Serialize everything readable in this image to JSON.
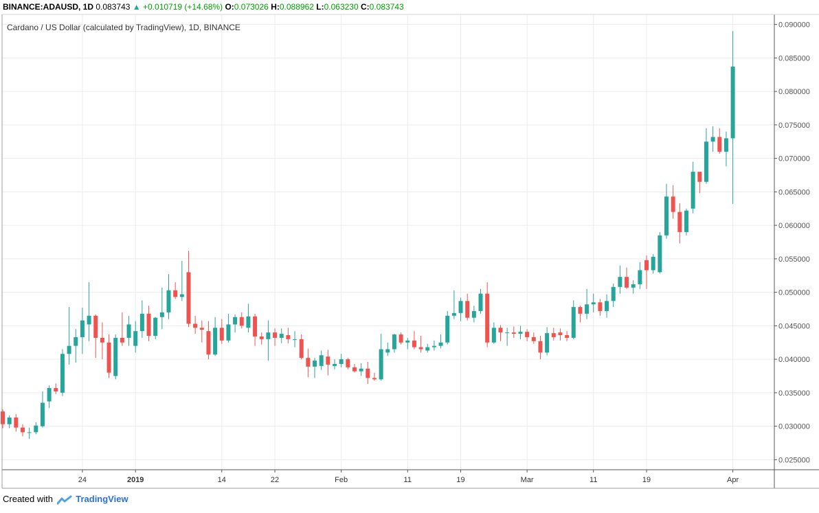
{
  "header": {
    "symbol": "BINANCE:ADAUSD, 1D",
    "last": "0.083743",
    "change": "+0.010719 (+14.68%)",
    "o_label": "O:",
    "o_value": "0.073026",
    "h_label": "H:",
    "h_value": "0.088962",
    "l_label": "L:",
    "l_value": "0.063230",
    "c_label": "C:",
    "c_value": "0.083743"
  },
  "footer": {
    "created_with": "Created with",
    "brand": "TradingView"
  },
  "colors": {
    "up": "#26a69a",
    "down": "#ef5350",
    "grid": "#ececec",
    "axis": "#555555"
  },
  "chart_data": {
    "type": "candlestick",
    "title": "Cardano / US Dollar (calculated by TradingView), 1D, BINANCE",
    "grid": true,
    "ylim": [
      0.0235,
      0.0915
    ],
    "yticks": [
      0.025,
      0.03,
      0.035,
      0.04,
      0.045,
      0.05,
      0.055,
      0.06,
      0.065,
      0.07,
      0.075,
      0.08,
      0.085,
      0.09
    ],
    "ytick_labels": [
      "0.025000",
      "0.030000",
      "0.035000",
      "0.040000",
      "0.045000",
      "0.050000",
      "0.055000",
      "0.060000",
      "0.065000",
      "0.070000",
      "0.075000",
      "0.080000",
      "0.085000",
      "0.090000"
    ],
    "xticks": [
      {
        "label": "24",
        "date": "2018-12-24"
      },
      {
        "label": "2019",
        "date": "2019-01-01"
      },
      {
        "label": "14",
        "date": "2019-01-14"
      },
      {
        "label": "22",
        "date": "2019-01-22"
      },
      {
        "label": "Feb",
        "date": "2019-02-01"
      },
      {
        "label": "11",
        "date": "2019-02-11"
      },
      {
        "label": "19",
        "date": "2019-02-19"
      },
      {
        "label": "Mar",
        "date": "2019-03-01"
      },
      {
        "label": "11",
        "date": "2019-03-11"
      },
      {
        "label": "19",
        "date": "2019-03-19"
      },
      {
        "label": "Apr",
        "date": "2019-04-01"
      }
    ],
    "start_date": "2018-12-12",
    "candles": [
      [
        0.0322,
        0.0325,
        0.0297,
        0.0303
      ],
      [
        0.0303,
        0.0316,
        0.0297,
        0.0313
      ],
      [
        0.0313,
        0.0318,
        0.0292,
        0.0298
      ],
      [
        0.0298,
        0.0303,
        0.0285,
        0.0291
      ],
      [
        0.0291,
        0.0298,
        0.0281,
        0.0291
      ],
      [
        0.0291,
        0.0306,
        0.0288,
        0.0301
      ],
      [
        0.03,
        0.0352,
        0.0298,
        0.0335
      ],
      [
        0.0337,
        0.0361,
        0.0327,
        0.0357
      ],
      [
        0.0357,
        0.0364,
        0.0348,
        0.0352
      ],
      [
        0.035,
        0.0415,
        0.0345,
        0.0408
      ],
      [
        0.0408,
        0.0478,
        0.0392,
        0.042
      ],
      [
        0.042,
        0.0445,
        0.0395,
        0.0433
      ],
      [
        0.0433,
        0.0477,
        0.0408,
        0.0458
      ],
      [
        0.0452,
        0.0515,
        0.0427,
        0.0465
      ],
      [
        0.0465,
        0.0467,
        0.0402,
        0.0432
      ],
      [
        0.0432,
        0.0455,
        0.04,
        0.0425
      ],
      [
        0.0425,
        0.0437,
        0.0372,
        0.038
      ],
      [
        0.0375,
        0.0437,
        0.037,
        0.0432
      ],
      [
        0.0432,
        0.047,
        0.042,
        0.0425
      ],
      [
        0.0432,
        0.0465,
        0.042,
        0.0452
      ],
      [
        0.042,
        0.0457,
        0.041,
        0.0442
      ],
      [
        0.0442,
        0.0488,
        0.0432,
        0.0468
      ],
      [
        0.0468,
        0.048,
        0.0427,
        0.0435
      ],
      [
        0.0435,
        0.0463,
        0.043,
        0.0462
      ],
      [
        0.0463,
        0.0507,
        0.0445,
        0.047
      ],
      [
        0.047,
        0.0527,
        0.046,
        0.0503
      ],
      [
        0.0503,
        0.0515,
        0.049,
        0.0493
      ],
      [
        0.0493,
        0.0547,
        0.0487,
        0.0497
      ],
      [
        0.053,
        0.0562,
        0.0448,
        0.0453
      ],
      [
        0.0453,
        0.0465,
        0.0438,
        0.0447
      ],
      [
        0.0447,
        0.0458,
        0.0425,
        0.0444
      ],
      [
        0.0442,
        0.0457,
        0.04,
        0.0407
      ],
      [
        0.0407,
        0.0463,
        0.0405,
        0.0447
      ],
      [
        0.0447,
        0.046,
        0.0423,
        0.0428
      ],
      [
        0.0428,
        0.0468,
        0.0425,
        0.0452
      ],
      [
        0.0452,
        0.0467,
        0.044,
        0.0463
      ],
      [
        0.0463,
        0.047,
        0.0446,
        0.045
      ],
      [
        0.0447,
        0.0483,
        0.044,
        0.0464
      ],
      [
        0.0464,
        0.0468,
        0.042,
        0.0434
      ],
      [
        0.0434,
        0.044,
        0.0422,
        0.043
      ],
      [
        0.043,
        0.0458,
        0.0398,
        0.044
      ],
      [
        0.044,
        0.0446,
        0.042,
        0.0432
      ],
      [
        0.0432,
        0.0446,
        0.0424,
        0.0438
      ],
      [
        0.0436,
        0.0447,
        0.0424,
        0.043
      ],
      [
        0.043,
        0.0442,
        0.0418,
        0.043
      ],
      [
        0.043,
        0.0437,
        0.04,
        0.0402
      ],
      [
        0.0402,
        0.0416,
        0.0373,
        0.0389
      ],
      [
        0.0389,
        0.0402,
        0.0372,
        0.0398
      ],
      [
        0.039,
        0.0413,
        0.0384,
        0.0406
      ],
      [
        0.0404,
        0.0414,
        0.0376,
        0.0392
      ],
      [
        0.039,
        0.04,
        0.0385,
        0.0393
      ],
      [
        0.0393,
        0.0408,
        0.0388,
        0.04
      ],
      [
        0.04,
        0.0402,
        0.0385,
        0.0388
      ],
      [
        0.0388,
        0.0393,
        0.038,
        0.0382
      ],
      [
        0.0382,
        0.0394,
        0.0375,
        0.0386
      ],
      [
        0.0386,
        0.0396,
        0.0363,
        0.0372
      ],
      [
        0.0372,
        0.038,
        0.0368,
        0.037
      ],
      [
        0.037,
        0.0438,
        0.0368,
        0.0415
      ],
      [
        0.041,
        0.0425,
        0.0405,
        0.0415
      ],
      [
        0.0415,
        0.0438,
        0.041,
        0.0437
      ],
      [
        0.0437,
        0.044,
        0.0422,
        0.0425
      ],
      [
        0.0425,
        0.0432,
        0.0415,
        0.0428
      ],
      [
        0.0428,
        0.0442,
        0.0415,
        0.0418
      ],
      [
        0.0418,
        0.0435,
        0.041,
        0.0415
      ],
      [
        0.0413,
        0.0423,
        0.041,
        0.0418
      ],
      [
        0.0418,
        0.0428,
        0.0413,
        0.042
      ],
      [
        0.042,
        0.0437,
        0.0416,
        0.0425
      ],
      [
        0.0425,
        0.0472,
        0.0422,
        0.0465
      ],
      [
        0.0465,
        0.0503,
        0.046,
        0.0469
      ],
      [
        0.0469,
        0.0492,
        0.0457,
        0.0487
      ],
      [
        0.0487,
        0.0498,
        0.0458,
        0.0462
      ],
      [
        0.0462,
        0.048,
        0.0455,
        0.0472
      ],
      [
        0.0472,
        0.0505,
        0.0468,
        0.0498
      ],
      [
        0.0498,
        0.0515,
        0.0418,
        0.0425
      ],
      [
        0.0425,
        0.0455,
        0.0423,
        0.0447
      ],
      [
        0.0447,
        0.0451,
        0.0427,
        0.044
      ],
      [
        0.044,
        0.0447,
        0.042,
        0.044
      ],
      [
        0.044,
        0.0449,
        0.0432,
        0.0438
      ],
      [
        0.0438,
        0.045,
        0.043,
        0.0441
      ],
      [
        0.0441,
        0.0445,
        0.0427,
        0.0433
      ],
      [
        0.0433,
        0.044,
        0.0423,
        0.0427
      ],
      [
        0.0427,
        0.0435,
        0.04,
        0.041
      ],
      [
        0.041,
        0.0448,
        0.0406,
        0.0439
      ],
      [
        0.0439,
        0.0447,
        0.0428,
        0.0433
      ],
      [
        0.044,
        0.0446,
        0.0428,
        0.0436
      ],
      [
        0.0436,
        0.0442,
        0.0427,
        0.0432
      ],
      [
        0.0432,
        0.0488,
        0.043,
        0.0478
      ],
      [
        0.0478,
        0.048,
        0.0455,
        0.0468
      ],
      [
        0.0468,
        0.0505,
        0.046,
        0.0482
      ],
      [
        0.0482,
        0.0498,
        0.047,
        0.0485
      ],
      [
        0.0485,
        0.049,
        0.0465,
        0.0472
      ],
      [
        0.0472,
        0.0497,
        0.0462,
        0.0487
      ],
      [
        0.0487,
        0.0513,
        0.0478,
        0.0508
      ],
      [
        0.0508,
        0.054,
        0.0498,
        0.0523
      ],
      [
        0.0523,
        0.0537,
        0.0505,
        0.0507
      ],
      [
        0.0507,
        0.0518,
        0.0498,
        0.0512
      ],
      [
        0.0512,
        0.0545,
        0.0505,
        0.0533
      ],
      [
        0.0548,
        0.0555,
        0.0505,
        0.0533
      ],
      [
        0.0533,
        0.0557,
        0.0528,
        0.0553
      ],
      [
        0.053,
        0.059,
        0.0528,
        0.0585
      ],
      [
        0.0585,
        0.0662,
        0.058,
        0.0643
      ],
      [
        0.0643,
        0.066,
        0.061,
        0.062
      ],
      [
        0.062,
        0.0633,
        0.0573,
        0.059
      ],
      [
        0.059,
        0.0625,
        0.0585,
        0.0622
      ],
      [
        0.0625,
        0.0695,
        0.0618,
        0.068
      ],
      [
        0.068,
        0.0675,
        0.0648,
        0.0665
      ],
      [
        0.0665,
        0.0745,
        0.0662,
        0.0725
      ],
      [
        0.0725,
        0.0748,
        0.071,
        0.0732
      ],
      [
        0.0732,
        0.0745,
        0.0707,
        0.071
      ],
      [
        0.071,
        0.074,
        0.0688,
        0.073
      ],
      [
        0.073,
        0.089,
        0.0632,
        0.0837
      ]
    ]
  }
}
